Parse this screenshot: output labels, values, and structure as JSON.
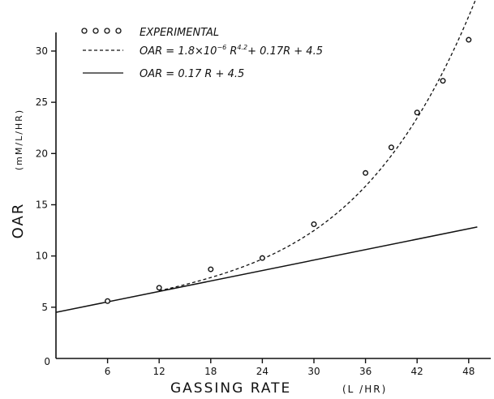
{
  "chart_data": {
    "type": "line",
    "xlabel": "GASSING RATE",
    "xlabel_unit": "(L /HR)",
    "ylabel": "OAR",
    "ylabel_unit": "(mM/L/HR)",
    "origin_label": "0",
    "x_ticks": [
      "6",
      "12",
      "18",
      "24",
      "30",
      "36",
      "42",
      "48"
    ],
    "y_ticks": [
      "5",
      "10",
      "15",
      "20",
      "25",
      "30"
    ],
    "xlim": [
      0,
      50
    ],
    "ylim": [
      0,
      31.5
    ],
    "grid": false,
    "legend_position": "top-left",
    "series": [
      {
        "name": "EXPERIMENTAL",
        "style": "open-circle-markers",
        "x": [
          6,
          12,
          18,
          24,
          30,
          36,
          39,
          42,
          45,
          48
        ],
        "y": [
          5.6,
          6.9,
          8.7,
          9.8,
          13.1,
          18.1,
          20.6,
          24.0,
          27.1,
          31.1
        ]
      },
      {
        "name": "OAR = 1.8×10⁻⁶ R⁴·² + 0.17R + 4.5",
        "legend_parts": {
          "prefix": "OAR = 1.8×10",
          "exp1": "−6",
          "mid": " R",
          "exp2": "4.2",
          "suffix": "+ 0.17R + 4.5"
        },
        "style": "dashed",
        "x_range": [
          12,
          49
        ]
      },
      {
        "name": "OAR = 0.17 R + 4.5",
        "style": "solid",
        "x_range": [
          0,
          49
        ]
      }
    ]
  }
}
